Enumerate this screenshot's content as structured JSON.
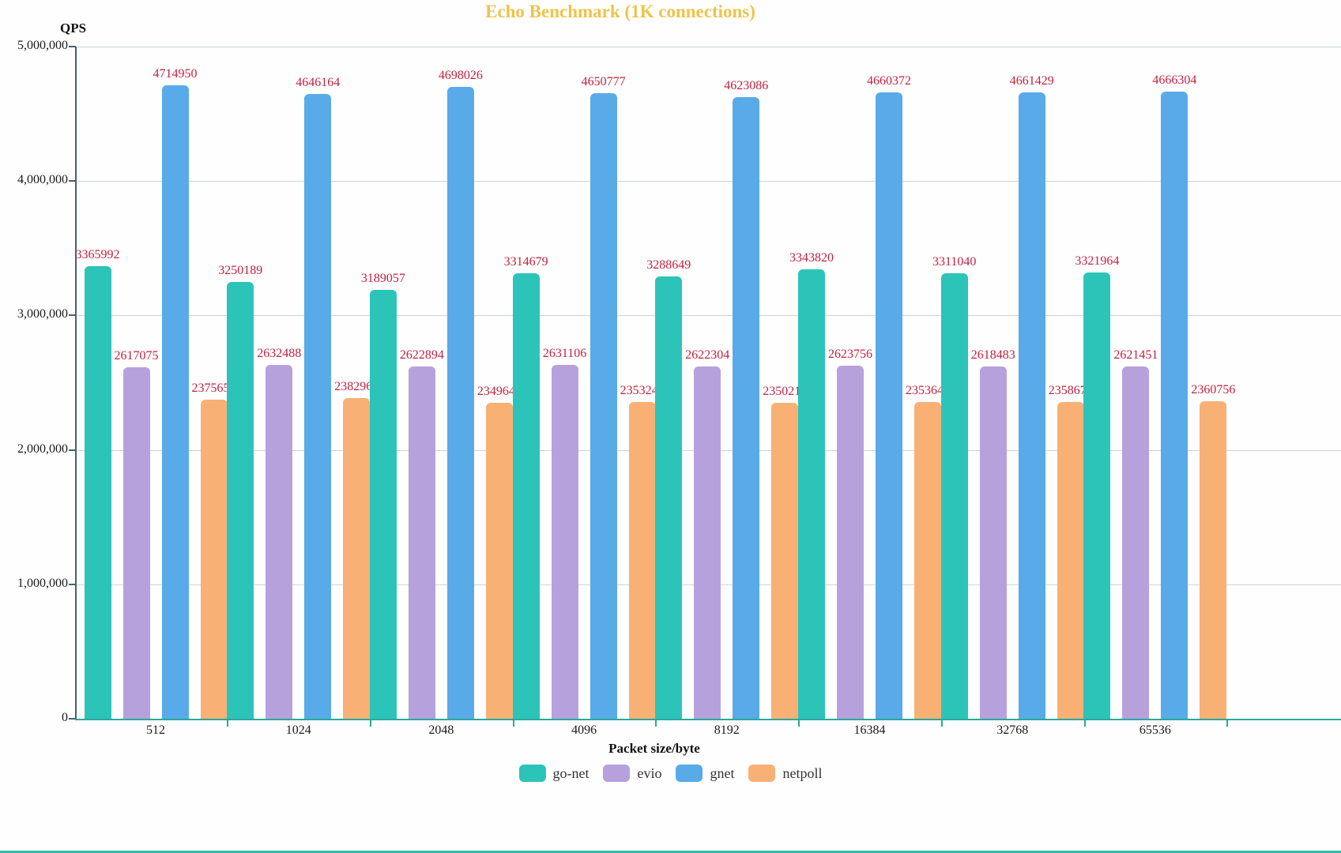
{
  "chart_data": {
    "type": "bar",
    "title": "Echo Benchmark (1K connections)",
    "ylabel": "QPS",
    "xlabel": "Packet size/byte",
    "ylim": [
      0,
      5000000
    ],
    "grid": true,
    "legend_position": "bottom",
    "y_tick_labels": [
      "5,000,000",
      "4,000,000",
      "3,000,000",
      "2,000,000",
      "1,000,000",
      "0"
    ],
    "categories": [
      "512",
      "1024",
      "2048",
      "4096",
      "8192",
      "16384",
      "32768",
      "65536"
    ],
    "series": [
      {
        "name": "go-net",
        "color": "#2cc4b9",
        "values": [
          3365992,
          3250189,
          3189057,
          3314679,
          3288649,
          3343820,
          3311040,
          3321964
        ]
      },
      {
        "name": "evio",
        "color": "#b6a1dd",
        "values": [
          2617075,
          2632488,
          2622894,
          2631106,
          2622304,
          2623756,
          2618483,
          2621451
        ]
      },
      {
        "name": "gnet",
        "color": "#58abe8",
        "values": [
          4714950,
          4646164,
          4698026,
          4650777,
          4623086,
          4660372,
          4661429,
          4666304
        ]
      },
      {
        "name": "netpoll",
        "color": "#f9b075",
        "values": [
          2375657,
          2382966,
          2349645,
          2353243,
          2350212,
          2353640,
          2358671,
          2360756
        ]
      }
    ]
  },
  "colors": {
    "title": "#efc34a",
    "value-label": "#c2223f",
    "grid": "#c9d8d4",
    "y-axis": "#46626e",
    "x-axis": "#2aa99a",
    "tick-text": "#1a1a1a",
    "legend-text": "#333333",
    "bottom-strip": "#2cbfad",
    "background": "#fefefe"
  }
}
